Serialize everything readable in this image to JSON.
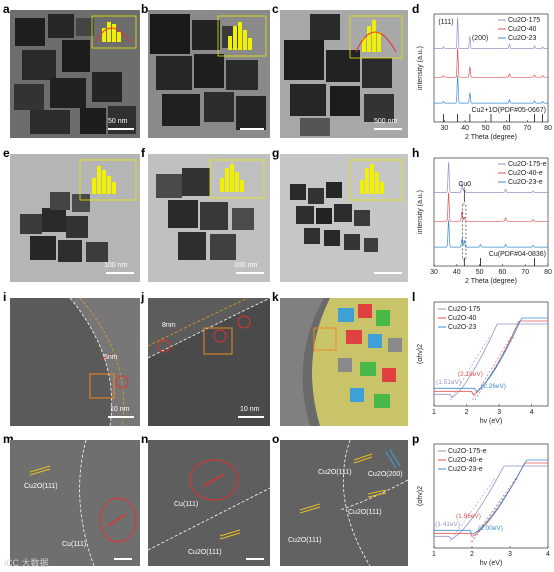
{
  "labels": {
    "a": "a",
    "b": "b",
    "c": "c",
    "d": "d",
    "e": "e",
    "f": "f",
    "g": "g",
    "h": "h",
    "i": "i",
    "j": "j",
    "k": "k",
    "l": "l",
    "m": "m",
    "n": "n",
    "o": "o",
    "p": "p"
  },
  "scalebars": {
    "a": "50 nm",
    "b": "",
    "c": "500 nm",
    "e": "100 nm",
    "f": "100 nm",
    "g": "",
    "i": "10 nm",
    "j": "10 nm",
    "k": ""
  },
  "annotations": {
    "i_shell": "5nm",
    "j_shell": "8nm",
    "m_top": "Cu2O(111)",
    "m_bottom": "Cu(111)",
    "n_top": "Cu(111)",
    "n_bottom": "Cu2O(111)",
    "o_a": "Cu2O(111)",
    "o_b": "Cu2O(200)",
    "o_c": "Cu2O(111)",
    "o_d": "Cu2O(111)",
    "d_peak1": "(111)",
    "d_peak2": "(200)",
    "h_cu0": "Cu0",
    "watermark": "iCC 大数据"
  },
  "chart_data": [
    {
      "panel": "d",
      "type": "line",
      "xlabel": "2 Theta (degree)",
      "ylabel": "intensity (a.u.)",
      "xlim": [
        25,
        80
      ],
      "xticks": [
        30,
        40,
        50,
        60,
        70,
        80
      ],
      "series": [
        {
          "name": "Cu2O-175",
          "color": "#9b8fc9",
          "offset": 2.0,
          "peaks": [
            [
              29.6,
              0.05
            ],
            [
              36.4,
              0.9
            ],
            [
              42.3,
              0.35
            ],
            [
              61.4,
              0.12
            ],
            [
              73.5,
              0.08
            ],
            [
              77.4,
              0.05
            ]
          ]
        },
        {
          "name": "Cu2O-40",
          "color": "#e05555",
          "offset": 1.0,
          "peaks": [
            [
              29.6,
              0.05
            ],
            [
              36.4,
              0.85
            ],
            [
              42.3,
              0.3
            ],
            [
              61.4,
              0.1
            ],
            [
              73.5,
              0.07
            ],
            [
              77.4,
              0.05
            ]
          ]
        },
        {
          "name": "Cu2O-23",
          "color": "#3b8fd0",
          "offset": 0.1,
          "peaks": [
            [
              29.6,
              0.05
            ],
            [
              36.4,
              0.8
            ],
            [
              42.3,
              0.3
            ],
            [
              61.4,
              0.1
            ],
            [
              73.5,
              0.07
            ],
            [
              77.4,
              0.05
            ]
          ]
        }
      ],
      "reference": {
        "name": "Cu2+1O(PDF#05-0667)",
        "positions": [
          29.6,
          36.4,
          42.3,
          52.5,
          61.4,
          73.5,
          77.4
        ]
      }
    },
    {
      "panel": "h",
      "type": "line",
      "xlabel": "2 Theta (degree)",
      "ylabel": "intensity (a.u.)",
      "xlim": [
        30,
        80
      ],
      "xticks": [
        30,
        40,
        50,
        60,
        70,
        80
      ],
      "series": [
        {
          "name": "Cu2O-175-e",
          "color": "#9b8fc9",
          "offset": 2.0,
          "peaks": [
            [
              36.4,
              0.9
            ],
            [
              42.3,
              0.3
            ],
            [
              43.3,
              0.15
            ],
            [
              61.4,
              0.1
            ],
            [
              73.5,
              0.05
            ]
          ]
        },
        {
          "name": "Cu2O-40-e",
          "color": "#e05555",
          "offset": 1.0,
          "peaks": [
            [
              36.4,
              0.85
            ],
            [
              42.3,
              0.3
            ],
            [
              43.3,
              0.12
            ],
            [
              61.4,
              0.1
            ],
            [
              73.5,
              0.05
            ]
          ]
        },
        {
          "name": "Cu2O-23-e",
          "color": "#3b8fd0",
          "offset": 0.1,
          "peaks": [
            [
              36.4,
              0.8
            ],
            [
              42.3,
              0.25
            ],
            [
              43.3,
              0.2
            ],
            [
              50.4,
              0.08
            ],
            [
              61.4,
              0.08
            ],
            [
              73.5,
              0.05
            ]
          ]
        }
      ],
      "reference": {
        "name": "Cu(PDF#04-0836)",
        "positions": [
          43.3,
          50.4,
          74.1
        ]
      }
    },
    {
      "panel": "l",
      "type": "line",
      "xlabel": "hv (eV)",
      "ylabel": "(αhv)2",
      "xlim": [
        1,
        4.5
      ],
      "xticks": [
        1,
        2,
        3,
        4
      ],
      "series": [
        {
          "name": "Cu2O-175",
          "color": "#9b8fc9",
          "gap": 1.51
        },
        {
          "name": "Cu2O-40",
          "color": "#e05555",
          "gap": 2.18
        },
        {
          "name": "Cu2O-23",
          "color": "#3b8fd0",
          "gap": 2.26
        }
      ],
      "gap_labels": [
        "(1.51eV)",
        "(2.18eV)",
        "(2.26eV)"
      ]
    },
    {
      "panel": "p",
      "type": "line",
      "xlabel": "hv (eV)",
      "ylabel": "(αhv)2",
      "xlim": [
        1,
        4
      ],
      "xticks": [
        1,
        2,
        3,
        4
      ],
      "series": [
        {
          "name": "Cu2O-175-e",
          "color": "#9b8fc9",
          "gap": 1.41
        },
        {
          "name": "Cu2O-40-e",
          "color": "#e05555",
          "gap": 1.96
        },
        {
          "name": "Cu2O-23-e",
          "color": "#3b8fd0",
          "gap": 2.0
        }
      ],
      "gap_labels": [
        "(1.41eV)",
        "(1.96eV)",
        "(2.00eV)"
      ]
    }
  ]
}
